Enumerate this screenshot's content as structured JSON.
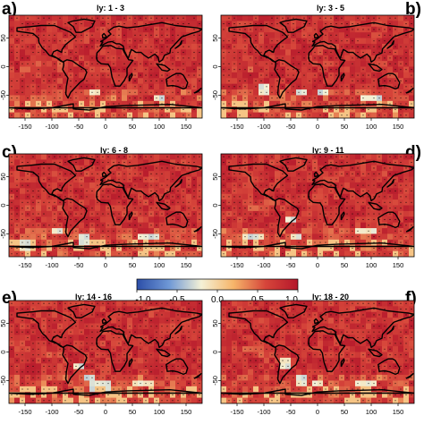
{
  "panels": [
    {
      "letter": "a)",
      "title": "ly: 1 - 3"
    },
    {
      "letter": "b)",
      "title": "ly: 3 - 5"
    },
    {
      "letter": "c)",
      "title": "ly: 6 - 8"
    },
    {
      "letter": "d)",
      "title": "ly: 9 - 11"
    },
    {
      "letter": "e)",
      "title": "ly: 14 - 16"
    },
    {
      "letter": "f)",
      "title": "ly: 18 - 20"
    }
  ],
  "x_ticks": [
    "-150",
    "-100",
    "-50",
    "0",
    "50",
    "100",
    "150"
  ],
  "y_ticks": [
    "50",
    "0",
    "-50"
  ],
  "colorbar": {
    "ticks": [
      "-1.0",
      "-0.5",
      "0.0",
      "0.5",
      "1.0"
    ],
    "min": -1.0,
    "max": 1.0,
    "colors": [
      "#2c4ea8",
      "#6f98d6",
      "#f4f1d6",
      "#f6b56a",
      "#d6453a",
      "#b5172b"
    ]
  },
  "map": {
    "lon_range": [
      -180,
      180
    ],
    "lat_range": [
      -90,
      90
    ]
  }
}
